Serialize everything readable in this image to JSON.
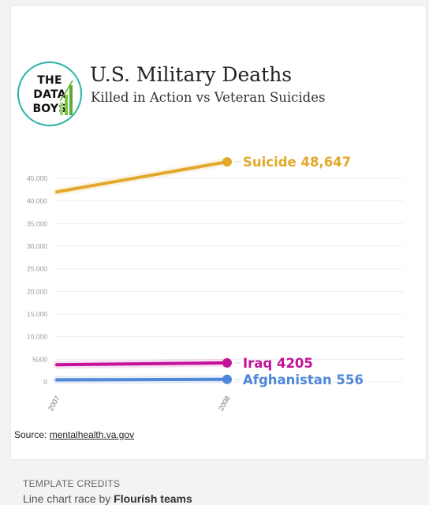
{
  "header": {
    "logo_lines": [
      "THE",
      "DATA",
      "BOYS"
    ],
    "title": "U.S. Military Deaths",
    "subtitle": "Killed in Action vs Veteran Suicides"
  },
  "chart_data": {
    "type": "line",
    "x": [
      "2007",
      "2008"
    ],
    "y_ticks": [
      0,
      5000,
      10000,
      15000,
      20000,
      25000,
      30000,
      35000,
      40000,
      45000
    ],
    "y_tick_labels": [
      "0",
      "5000",
      "10,000",
      "15,000",
      "20,000",
      "25,000",
      "30,000",
      "35,000",
      "40,000",
      "45,000"
    ],
    "ylim": [
      0,
      50000
    ],
    "grid": true,
    "series": [
      {
        "name": "Suicide",
        "end_label": "Suicide 48,647",
        "values": [
          42000,
          48647
        ],
        "color": "#e3a82b"
      },
      {
        "name": "Iraq",
        "end_label": "Iraq 4205",
        "values": [
          3800,
          4205
        ],
        "color": "#c2129a"
      },
      {
        "name": "Afghanistan",
        "end_label": "Afghanistan 556",
        "values": [
          460,
          556
        ],
        "color": "#4f86d9"
      }
    ]
  },
  "source": {
    "label": "Source: ",
    "link": "mentalhealth.va.gov"
  },
  "credits": {
    "label": "TEMPLATE CREDITS",
    "text_prefix": "Line chart race by ",
    "text_bold": "Flourish teams"
  }
}
